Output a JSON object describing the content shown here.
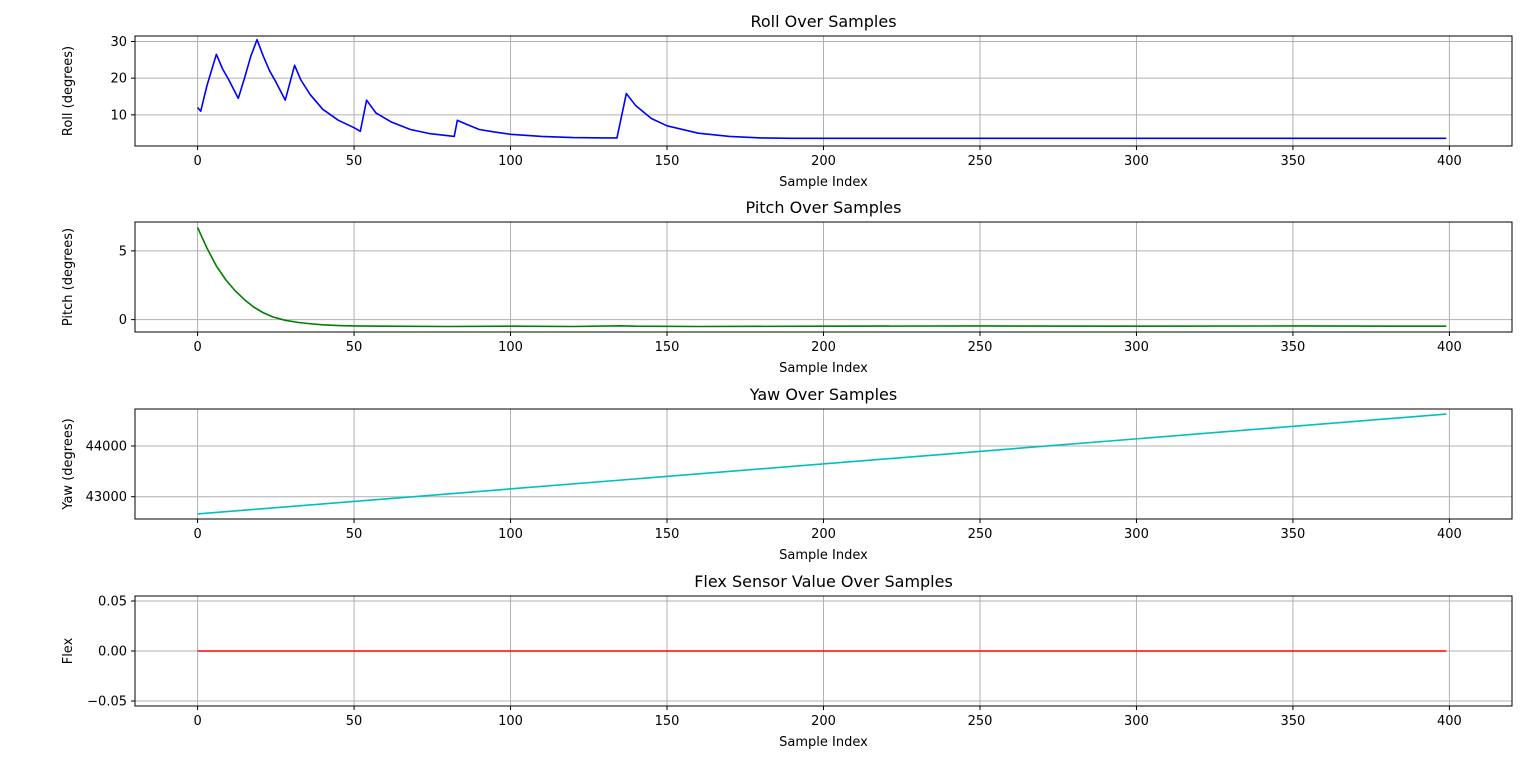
{
  "chart_data": [
    {
      "type": "line",
      "title": "Roll Over Samples",
      "xlabel": "Sample Index",
      "ylabel": "Roll (degrees)",
      "xlim": [
        -20,
        420
      ],
      "ylim": [
        1.5,
        31.5
      ],
      "xticks": [
        0,
        50,
        100,
        150,
        200,
        250,
        300,
        350,
        400
      ],
      "yticks": [
        10,
        20,
        30
      ],
      "ytick_labels": [
        "10",
        "20",
        "30"
      ],
      "grid": true,
      "series": [
        {
          "color": "#0000ff",
          "points": [
            [
              0,
              12
            ],
            [
              1,
              11
            ],
            [
              3,
              18
            ],
            [
              6,
              26.5
            ],
            [
              8,
              22.5
            ],
            [
              10,
              19.5
            ],
            [
              13,
              14.5
            ],
            [
              15,
              20
            ],
            [
              17,
              26
            ],
            [
              19,
              30.5
            ],
            [
              21,
              26
            ],
            [
              23,
              22
            ],
            [
              25,
              19
            ],
            [
              28,
              14
            ],
            [
              31,
              23.5
            ],
            [
              33,
              19.5
            ],
            [
              36,
              15.5
            ],
            [
              40,
              11.5
            ],
            [
              45,
              8.5
            ],
            [
              50,
              6.5
            ],
            [
              52,
              5.5
            ],
            [
              54,
              14
            ],
            [
              57,
              10.5
            ],
            [
              62,
              8
            ],
            [
              68,
              6
            ],
            [
              74,
              4.9
            ],
            [
              80,
              4.3
            ],
            [
              82,
              4.1
            ],
            [
              83,
              8.5
            ],
            [
              86,
              7.4
            ],
            [
              90,
              6
            ],
            [
              95,
              5.3
            ],
            [
              100,
              4.7
            ],
            [
              110,
              4.1
            ],
            [
              120,
              3.8
            ],
            [
              130,
              3.7
            ],
            [
              134,
              3.7
            ],
            [
              137,
              15.8
            ],
            [
              140,
              12.5
            ],
            [
              145,
              9
            ],
            [
              150,
              7
            ],
            [
              160,
              5
            ],
            [
              170,
              4.1
            ],
            [
              180,
              3.7
            ],
            [
              190,
              3.6
            ],
            [
              200,
              3.6
            ],
            [
              250,
              3.6
            ],
            [
              300,
              3.6
            ],
            [
              350,
              3.6
            ],
            [
              399,
              3.6
            ]
          ]
        }
      ]
    },
    {
      "type": "line",
      "title": "Pitch Over Samples",
      "xlabel": "Sample Index",
      "ylabel": "Pitch (degrees)",
      "xlim": [
        -20,
        420
      ],
      "ylim": [
        -0.9,
        7.1
      ],
      "xticks": [
        0,
        50,
        100,
        150,
        200,
        250,
        300,
        350,
        400
      ],
      "yticks": [
        0,
        5
      ],
      "ytick_labels": [
        "0",
        "5"
      ],
      "grid": true,
      "series": [
        {
          "color": "#008000",
          "points": [
            [
              0,
              6.7
            ],
            [
              3,
              5.2
            ],
            [
              6,
              3.9
            ],
            [
              9,
              2.9
            ],
            [
              12,
              2.1
            ],
            [
              15,
              1.45
            ],
            [
              18,
              0.9
            ],
            [
              21,
              0.5
            ],
            [
              24,
              0.2
            ],
            [
              28,
              -0.05
            ],
            [
              32,
              -0.2
            ],
            [
              36,
              -0.3
            ],
            [
              40,
              -0.38
            ],
            [
              45,
              -0.43
            ],
            [
              50,
              -0.46
            ],
            [
              60,
              -0.48
            ],
            [
              80,
              -0.5
            ],
            [
              100,
              -0.48
            ],
            [
              120,
              -0.5
            ],
            [
              135,
              -0.45
            ],
            [
              140,
              -0.48
            ],
            [
              160,
              -0.5
            ],
            [
              200,
              -0.48
            ],
            [
              250,
              -0.46
            ],
            [
              300,
              -0.48
            ],
            [
              350,
              -0.46
            ],
            [
              399,
              -0.48
            ]
          ]
        }
      ]
    },
    {
      "type": "line",
      "title": "Yaw Over Samples",
      "xlabel": "Sample Index",
      "ylabel": "Yaw (degrees)",
      "xlim": [
        -20,
        420
      ],
      "ylim": [
        42560,
        44730
      ],
      "xticks": [
        0,
        50,
        100,
        150,
        200,
        250,
        300,
        350,
        400
      ],
      "yticks": [
        43000,
        44000
      ],
      "ytick_labels": [
        "43000",
        "44000"
      ],
      "grid": true,
      "series": [
        {
          "color": "#00bfbf",
          "points": [
            [
              0,
              42660
            ],
            [
              399,
              44630
            ]
          ]
        }
      ]
    },
    {
      "type": "line",
      "title": "Flex Sensor Value Over Samples",
      "xlabel": "Sample Index",
      "ylabel": "Flex",
      "xlim": [
        -20,
        420
      ],
      "ylim": [
        -0.055,
        0.055
      ],
      "xticks": [
        0,
        50,
        100,
        150,
        200,
        250,
        300,
        350,
        400
      ],
      "yticks": [
        -0.05,
        0,
        0.05
      ],
      "ytick_labels": [
        "−0.05",
        "0.00",
        "0.05"
      ],
      "grid": true,
      "series": [
        {
          "color": "#ff0000",
          "points": [
            [
              0,
              0
            ],
            [
              399,
              0
            ]
          ]
        }
      ]
    }
  ]
}
